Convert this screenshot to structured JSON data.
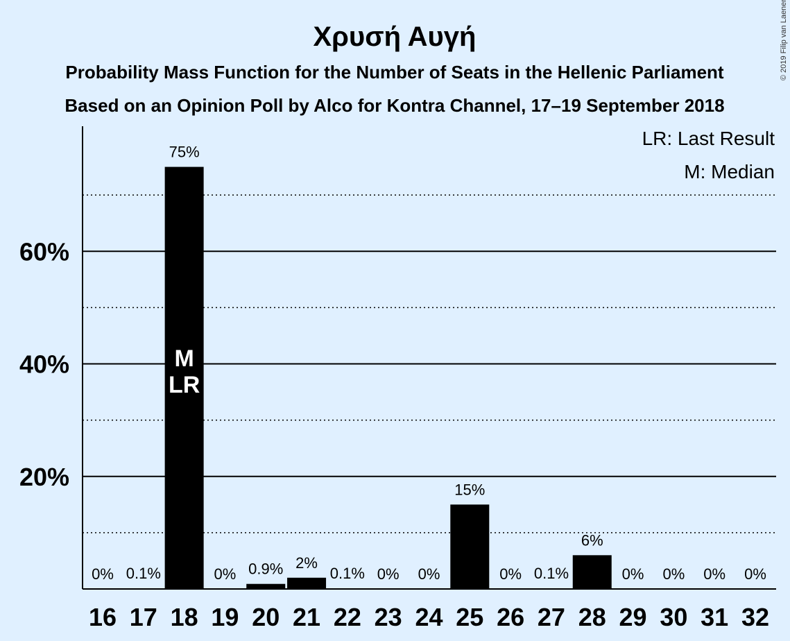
{
  "chart_data": {
    "type": "bar",
    "title": "Χρυσή Αυγή",
    "subtitle_1": "Probability Mass Function for the Number of Seats in the Hellenic Parliament",
    "subtitle_2": "Based on an Opinion Poll by Alco for Kontra Channel, 17–19 September 2018",
    "copyright": "© 2019 Filip van Laenen",
    "categories": [
      "16",
      "17",
      "18",
      "19",
      "20",
      "21",
      "22",
      "23",
      "24",
      "25",
      "26",
      "27",
      "28",
      "29",
      "30",
      "31",
      "32"
    ],
    "values": [
      0,
      0.1,
      75,
      0,
      0.9,
      2,
      0.1,
      0,
      0,
      15,
      0,
      0.1,
      6,
      0,
      0,
      0,
      0
    ],
    "value_labels": [
      "0%",
      "0.1%",
      "75%",
      "0%",
      "0.9%",
      "2%",
      "0.1%",
      "0%",
      "0%",
      "15%",
      "0%",
      "0.1%",
      "6%",
      "0%",
      "0%",
      "0%",
      "0%"
    ],
    "ylim": [
      0,
      82
    ],
    "y_major_ticks": [
      20,
      40,
      60
    ],
    "y_major_labels": [
      "20%",
      "40%",
      "60%"
    ],
    "y_minor_gridlines": [
      10,
      30,
      50,
      70
    ],
    "median_category": "18",
    "last_result_category": "18",
    "median_marker": "M",
    "last_result_marker": "LR",
    "legend": [
      "LR: Last Result",
      "M: Median"
    ],
    "legend_position": "top-right",
    "background_color": "#e0f0ff",
    "bar_color": "#000000"
  }
}
